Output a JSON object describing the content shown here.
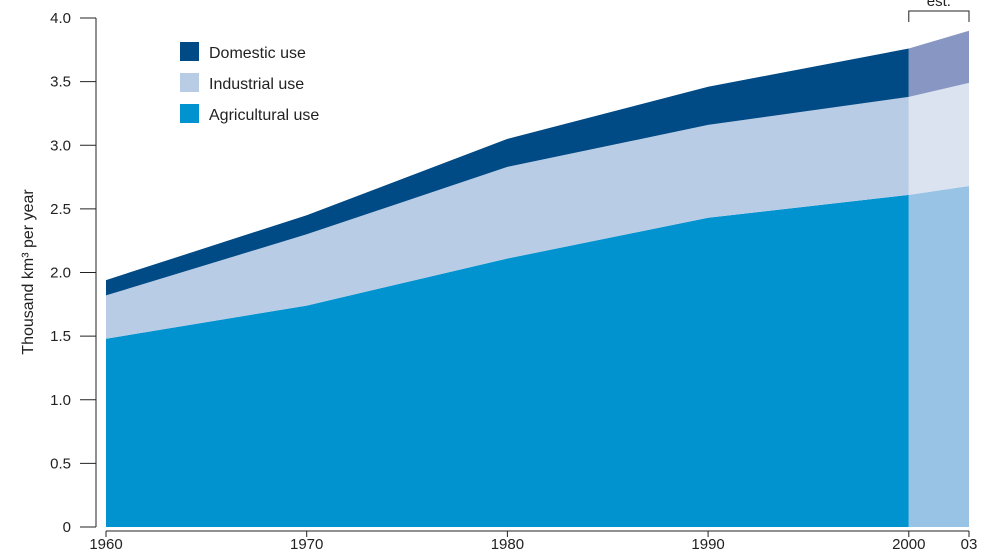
{
  "chart_data": {
    "type": "area",
    "stacked": true,
    "title": "",
    "ylabel": "Thousand km³ per year",
    "xlabel": "",
    "ylim": [
      0,
      4.0
    ],
    "yticks": [
      "0",
      "0.5",
      "1.0",
      "1.5",
      "2.0",
      "2.5",
      "3.0",
      "3.5",
      "4.0"
    ],
    "x": [
      1960,
      1970,
      1980,
      1990,
      2000,
      2003
    ],
    "xtick_labels": [
      "1960",
      "1970",
      "1980",
      "1990",
      "2000",
      "03"
    ],
    "estimate": {
      "from": 2000,
      "to": 2003,
      "label": "est."
    },
    "legend_position": "top-left",
    "series": [
      {
        "name": "Agricultural use",
        "color": "#0093D0",
        "est_color": "#99C3E5",
        "values": [
          1.48,
          1.74,
          2.11,
          2.43,
          2.61,
          2.68
        ]
      },
      {
        "name": "Industrial use",
        "color": "#B9CCE5",
        "est_color": "#DBE3F1",
        "values": [
          0.34,
          0.56,
          0.72,
          0.73,
          0.77,
          0.81
        ]
      },
      {
        "name": "Domestic use",
        "color": "#004A86",
        "est_color": "#8796C2",
        "values": [
          0.12,
          0.15,
          0.22,
          0.3,
          0.38,
          0.41
        ]
      }
    ],
    "legend_order": [
      "Domestic use",
      "Industrial use",
      "Agricultural use"
    ],
    "grid": false
  }
}
